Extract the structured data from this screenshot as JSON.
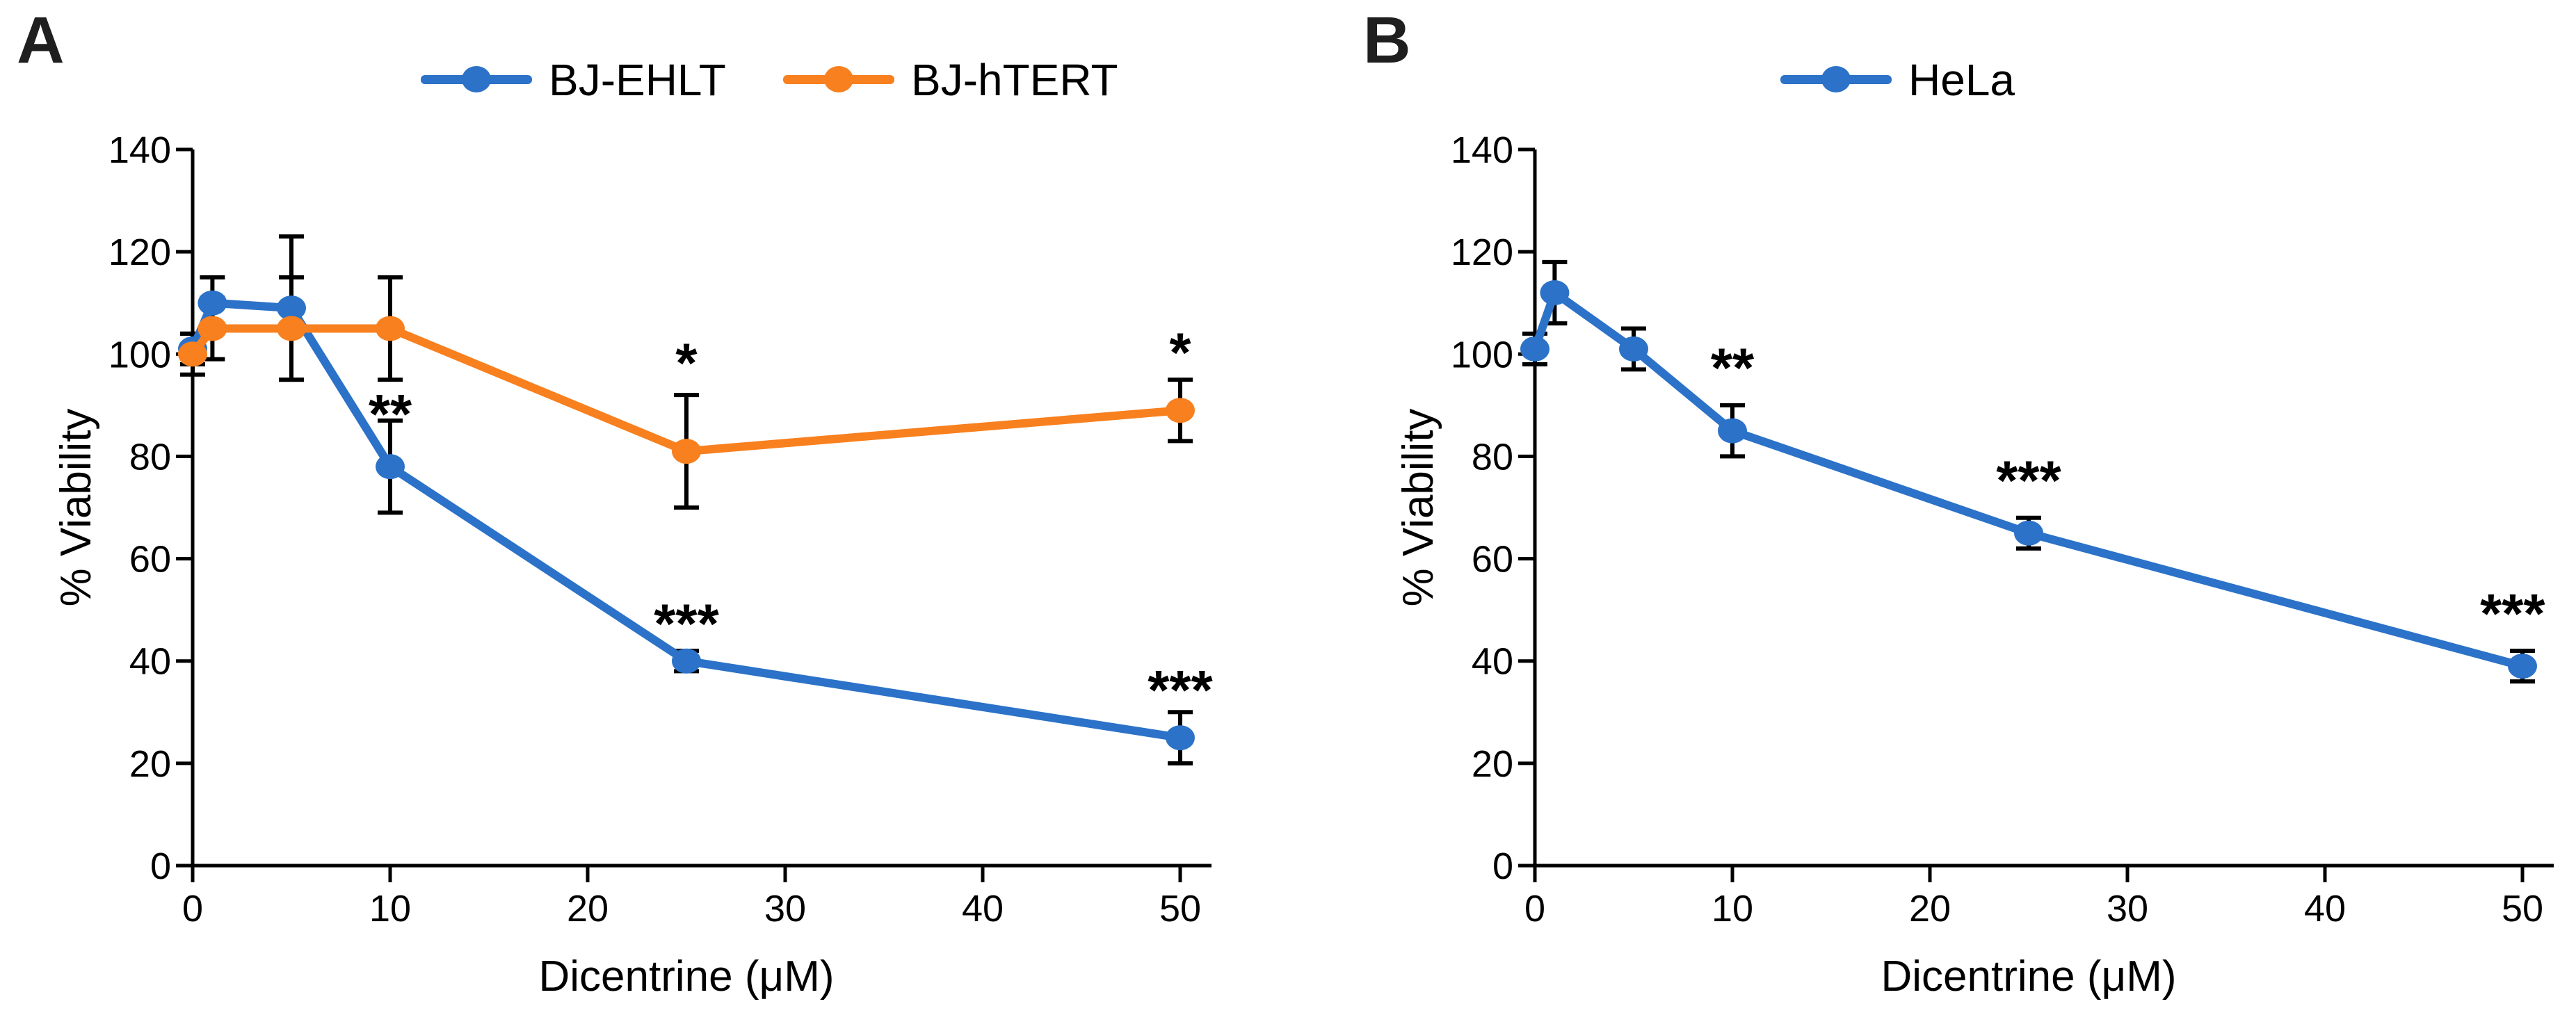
{
  "figure": {
    "panels": [
      {
        "letter": "A",
        "legend": [
          {
            "label": "BJ-EHLT",
            "color": "#2B72C8",
            "marker": "circle-on-line"
          },
          {
            "label": "BJ-hTERT",
            "color": "#F8801F",
            "marker": "circle-on-line"
          }
        ],
        "chart_data": {
          "type": "line",
          "x": [
            0,
            1,
            5,
            10,
            25,
            50
          ],
          "series": [
            {
              "name": "BJ-EHLT",
              "color": "#2B72C8",
              "values": [
                101,
                110,
                109,
                78,
                40,
                25
              ],
              "errors": [
                3,
                5,
                14,
                9,
                2,
                5
              ]
            },
            {
              "name": "BJ-hTERT",
              "color": "#F8801F",
              "values": [
                100,
                105,
                105,
                105,
                81,
                89
              ],
              "errors": [
                4,
                6,
                10,
                10,
                11,
                6
              ]
            }
          ],
          "annotations": [
            {
              "text": "**",
              "x": 10,
              "y": 90
            },
            {
              "text": "***",
              "x": 25,
              "y": 49
            },
            {
              "text": "***",
              "x": 50,
              "y": 36
            },
            {
              "text": "*",
              "x": 25,
              "y": 100
            },
            {
              "text": "*",
              "x": 50,
              "y": 102
            }
          ],
          "xlabel": "Dicentrine (μM)",
          "ylabel": "% Viability",
          "xticks": [
            0,
            10,
            20,
            30,
            40,
            50
          ],
          "yticks": [
            0,
            20,
            40,
            60,
            80,
            100,
            120,
            140
          ],
          "xlim": [
            0,
            50
          ],
          "ylim": [
            0,
            140
          ],
          "grid": false,
          "legend_position": "top",
          "error_bars": true
        }
      },
      {
        "letter": "B",
        "legend": [
          {
            "label": "HeLa",
            "color": "#2B72C8",
            "marker": "circle-on-line"
          }
        ],
        "chart_data": {
          "type": "line",
          "x": [
            0,
            1,
            5,
            10,
            25,
            50
          ],
          "series": [
            {
              "name": "HeLa",
              "color": "#2B72C8",
              "values": [
                101,
                112,
                101,
                85,
                65,
                39
              ],
              "errors": [
                3,
                6,
                4,
                5,
                3,
                3
              ]
            }
          ],
          "annotations": [
            {
              "text": "**",
              "x": 10,
              "y": 99
            },
            {
              "text": "***",
              "x": 25,
              "y": 77
            },
            {
              "text": "***",
              "x": 49.5,
              "y": 51
            }
          ],
          "xlabel": "Dicentrine (μM)",
          "ylabel": "% Viability",
          "xticks": [
            0,
            10,
            20,
            30,
            40,
            50
          ],
          "yticks": [
            0,
            20,
            40,
            60,
            80,
            100,
            120,
            140
          ],
          "xlim": [
            0,
            50
          ],
          "ylim": [
            0,
            140
          ],
          "grid": false,
          "legend_position": "top",
          "error_bars": true
        }
      }
    ]
  }
}
